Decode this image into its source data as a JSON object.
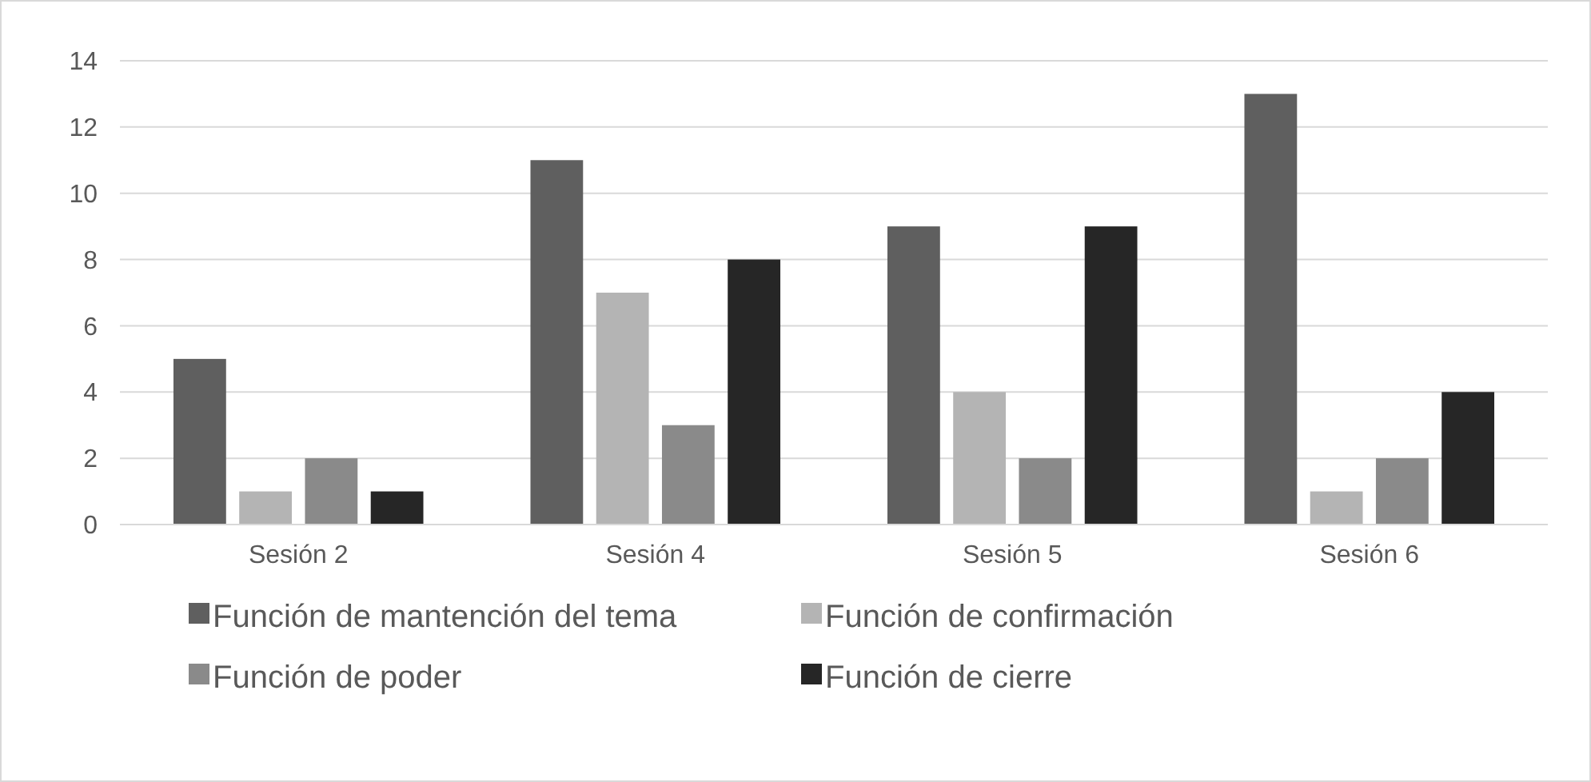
{
  "chart_data": {
    "type": "bar",
    "categories": [
      "Sesión 2",
      "Sesión 4",
      "Sesión 5",
      "Sesión 6"
    ],
    "series": [
      {
        "name": "Función de mantención del tema",
        "color": "#5f5f5f",
        "values": [
          5,
          11,
          9,
          13
        ]
      },
      {
        "name": "Función de confirmación",
        "color": "#b4b4b4",
        "values": [
          1,
          7,
          4,
          1
        ]
      },
      {
        "name": "Función de poder",
        "color": "#8a8a8a",
        "values": [
          2,
          3,
          2,
          2
        ]
      },
      {
        "name": "Función de cierre",
        "color": "#262626",
        "values": [
          1,
          8,
          9,
          4
        ]
      }
    ],
    "ylim": [
      0,
      14
    ],
    "yticks": [
      0,
      2,
      4,
      6,
      8,
      10,
      12,
      14
    ],
    "grid": "y",
    "legend": "bottom"
  }
}
